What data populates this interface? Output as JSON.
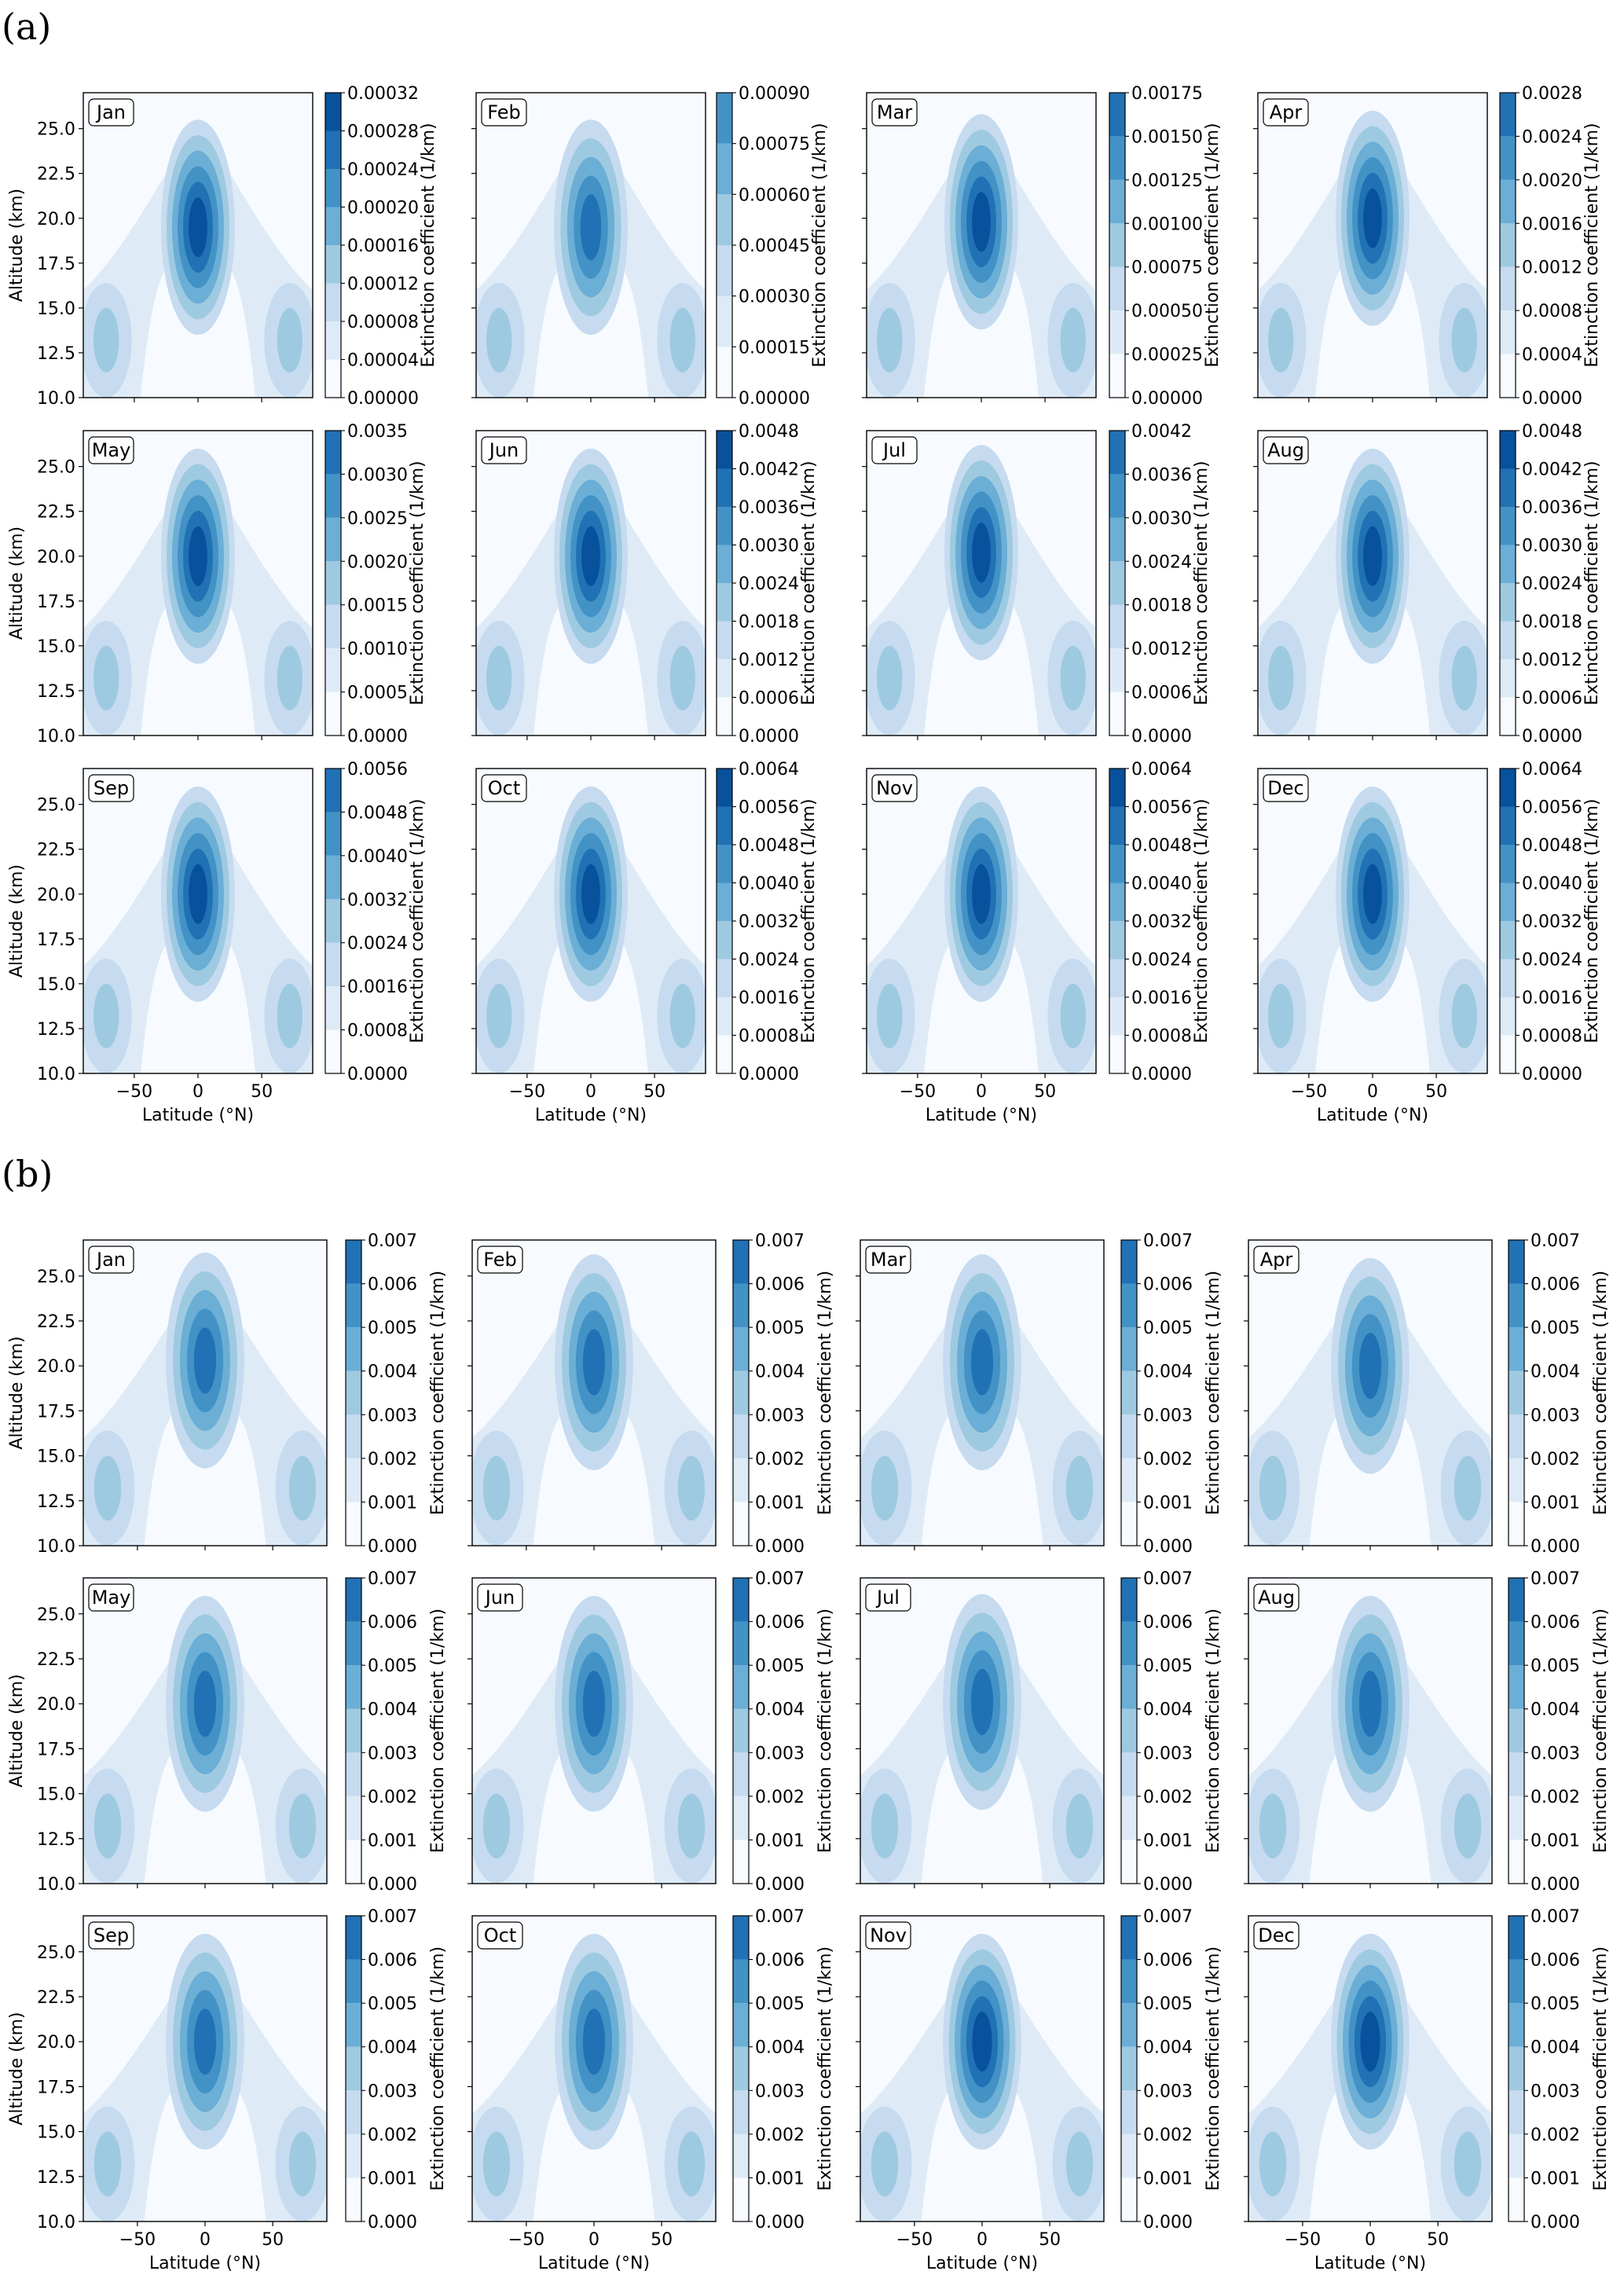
{
  "parts": [
    {
      "label": "(a)",
      "y_label": "Altitude (km)",
      "x_label": "Latitude (°N)",
      "colorbar_label": "Extinction coefficient (1/km)",
      "y_ticks": [
        "10.0",
        "12.5",
        "15.0",
        "17.5",
        "20.0",
        "22.5",
        "25.0"
      ],
      "x_ticks": [
        "−50",
        "0",
        "50"
      ]
    },
    {
      "label": "(b)",
      "y_label": "Altitude (km)",
      "x_label": "Latitude (°N)",
      "colorbar_label": "Extinction coefficient (1/km)",
      "y_ticks": [
        "10.0",
        "12.5",
        "15.0",
        "17.5",
        "20.0",
        "22.5",
        "25.0"
      ],
      "x_ticks": [
        "−50",
        "0",
        "50"
      ]
    }
  ],
  "chart_data": [
    {
      "type": "contour",
      "part": "(a)",
      "xlabel": "Latitude (°N)",
      "ylabel": "Altitude (km)",
      "zlabel": "Extinction coefficient (1/km)",
      "xlim": [
        -90,
        90
      ],
      "ylim": [
        10,
        27
      ],
      "colormap": "Blues",
      "colors": [
        "#f7fbff",
        "#deebf7",
        "#c6dbef",
        "#9ecae1",
        "#6baed6",
        "#4292c6",
        "#2171b5",
        "#08519c",
        "#08306b"
      ],
      "panels": [
        {
          "month": "Jan",
          "levels": [
            "0.00000",
            "0.00004",
            "0.00008",
            "0.00012",
            "0.00016",
            "0.00020",
            "0.00024",
            "0.00028",
            "0.00032"
          ],
          "core_altitude": 19.5,
          "core_level": 7
        },
        {
          "month": "Feb",
          "levels": [
            "0.00000",
            "0.00015",
            "0.00030",
            "0.00045",
            "0.00060",
            "0.00075",
            "0.00090"
          ],
          "core_altitude": 19.5,
          "core_level": 6
        },
        {
          "month": "Mar",
          "levels": [
            "0.00000",
            "0.00025",
            "0.00050",
            "0.00075",
            "0.00100",
            "0.00125",
            "0.00150",
            "0.00175"
          ],
          "core_altitude": 19.8,
          "core_level": 7
        },
        {
          "month": "Apr",
          "levels": [
            "0.0000",
            "0.0004",
            "0.0008",
            "0.0012",
            "0.0016",
            "0.0020",
            "0.0024",
            "0.0028"
          ],
          "core_altitude": 20.0,
          "core_level": 7
        },
        {
          "month": "May",
          "levels": [
            "0.0000",
            "0.0005",
            "0.0010",
            "0.0015",
            "0.0020",
            "0.0025",
            "0.0030",
            "0.0035"
          ],
          "core_altitude": 20.0,
          "core_level": 7
        },
        {
          "month": "Jun",
          "levels": [
            "0.0000",
            "0.0006",
            "0.0012",
            "0.0018",
            "0.0024",
            "0.0030",
            "0.0036",
            "0.0042",
            "0.0048"
          ],
          "core_altitude": 20.0,
          "core_level": 7
        },
        {
          "month": "Jul",
          "levels": [
            "0.0000",
            "0.0006",
            "0.0012",
            "0.0018",
            "0.0024",
            "0.0030",
            "0.0036",
            "0.0042"
          ],
          "core_altitude": 20.2,
          "core_level": 7
        },
        {
          "month": "Aug",
          "levels": [
            "0.0000",
            "0.0006",
            "0.0012",
            "0.0018",
            "0.0024",
            "0.0030",
            "0.0036",
            "0.0042",
            "0.0048"
          ],
          "core_altitude": 20.0,
          "core_level": 7
        },
        {
          "month": "Sep",
          "levels": [
            "0.0000",
            "0.0008",
            "0.0016",
            "0.0024",
            "0.0032",
            "0.0040",
            "0.0048",
            "0.0056"
          ],
          "core_altitude": 20.0,
          "core_level": 7
        },
        {
          "month": "Oct",
          "levels": [
            "0.0000",
            "0.0008",
            "0.0016",
            "0.0024",
            "0.0032",
            "0.0040",
            "0.0048",
            "0.0056",
            "0.0064"
          ],
          "core_altitude": 20.0,
          "core_level": 7
        },
        {
          "month": "Nov",
          "levels": [
            "0.0000",
            "0.0008",
            "0.0016",
            "0.0024",
            "0.0032",
            "0.0040",
            "0.0048",
            "0.0056",
            "0.0064"
          ],
          "core_altitude": 20.0,
          "core_level": 7
        },
        {
          "month": "Dec",
          "levels": [
            "0.0000",
            "0.0008",
            "0.0016",
            "0.0024",
            "0.0032",
            "0.0040",
            "0.0048",
            "0.0056",
            "0.0064"
          ],
          "core_altitude": 20.0,
          "core_level": 7
        }
      ]
    },
    {
      "type": "contour",
      "part": "(b)",
      "xlabel": "Latitude (°N)",
      "ylabel": "Altitude (km)",
      "zlabel": "Extinction coefficient (1/km)",
      "xlim": [
        -90,
        90
      ],
      "ylim": [
        10,
        27
      ],
      "colormap": "Blues",
      "colors": [
        "#f7fbff",
        "#deebf7",
        "#c6dbef",
        "#9ecae1",
        "#6baed6",
        "#4292c6",
        "#2171b5",
        "#08519c",
        "#08306b"
      ],
      "panels": [
        {
          "month": "Jan",
          "levels": [
            "0.000",
            "0.001",
            "0.002",
            "0.003",
            "0.004",
            "0.005",
            "0.006",
            "0.007"
          ],
          "core_altitude": 20.3,
          "core_level": 6
        },
        {
          "month": "Feb",
          "levels": [
            "0.000",
            "0.001",
            "0.002",
            "0.003",
            "0.004",
            "0.005",
            "0.006",
            "0.007"
          ],
          "core_altitude": 20.2,
          "core_level": 6
        },
        {
          "month": "Mar",
          "levels": [
            "0.000",
            "0.001",
            "0.002",
            "0.003",
            "0.004",
            "0.005",
            "0.006",
            "0.007"
          ],
          "core_altitude": 20.2,
          "core_level": 6
        },
        {
          "month": "Apr",
          "levels": [
            "0.000",
            "0.001",
            "0.002",
            "0.003",
            "0.004",
            "0.005",
            "0.006",
            "0.007"
          ],
          "core_altitude": 20.0,
          "core_level": 6
        },
        {
          "month": "May",
          "levels": [
            "0.000",
            "0.001",
            "0.002",
            "0.003",
            "0.004",
            "0.005",
            "0.006",
            "0.007"
          ],
          "core_altitude": 20.0,
          "core_level": 6
        },
        {
          "month": "Jun",
          "levels": [
            "0.000",
            "0.001",
            "0.002",
            "0.003",
            "0.004",
            "0.005",
            "0.006",
            "0.007"
          ],
          "core_altitude": 20.0,
          "core_level": 6
        },
        {
          "month": "Jul",
          "levels": [
            "0.000",
            "0.001",
            "0.002",
            "0.003",
            "0.004",
            "0.005",
            "0.006",
            "0.007"
          ],
          "core_altitude": 20.1,
          "core_level": 6
        },
        {
          "month": "Aug",
          "levels": [
            "0.000",
            "0.001",
            "0.002",
            "0.003",
            "0.004",
            "0.005",
            "0.006",
            "0.007"
          ],
          "core_altitude": 20.0,
          "core_level": 6
        },
        {
          "month": "Sep",
          "levels": [
            "0.000",
            "0.001",
            "0.002",
            "0.003",
            "0.004",
            "0.005",
            "0.006",
            "0.007"
          ],
          "core_altitude": 20.0,
          "core_level": 6
        },
        {
          "month": "Oct",
          "levels": [
            "0.000",
            "0.001",
            "0.002",
            "0.003",
            "0.004",
            "0.005",
            "0.006",
            "0.007"
          ],
          "core_altitude": 20.0,
          "core_level": 6
        },
        {
          "month": "Nov",
          "levels": [
            "0.000",
            "0.001",
            "0.002",
            "0.003",
            "0.004",
            "0.005",
            "0.006",
            "0.007"
          ],
          "core_altitude": 20.0,
          "core_level": 7
        },
        {
          "month": "Dec",
          "levels": [
            "0.000",
            "0.001",
            "0.002",
            "0.003",
            "0.004",
            "0.005",
            "0.006",
            "0.007"
          ],
          "core_altitude": 20.0,
          "core_level": 7
        }
      ]
    }
  ]
}
